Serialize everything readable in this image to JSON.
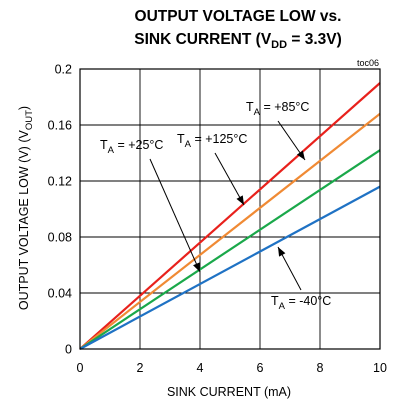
{
  "chart_data": {
    "type": "line",
    "title_line1": "OUTPUT VOLTAGE LOW vs.",
    "title_line2_prefix": "SINK CURRENT (V",
    "title_line2_sub": "DD",
    "title_line2_suffix": " = 3.3V)",
    "reference": "toc06",
    "xlabel": "SINK CURRENT (mA)",
    "ylabel_prefix": "OUTPUT VOLTAGE LOW (V) (V",
    "ylabel_sub": "OUT",
    "ylabel_suffix": ")",
    "xlim": [
      0,
      10
    ],
    "ylim": [
      0,
      0.2
    ],
    "xticks": [
      0,
      2,
      4,
      6,
      8,
      10
    ],
    "xtick_labels": [
      "0",
      "2",
      "4",
      "6",
      "8",
      "10"
    ],
    "yticks": [
      0,
      0.04,
      0.08,
      0.12,
      0.16,
      0.2
    ],
    "ytick_labels": [
      "0",
      "0.04",
      "0.08",
      "0.12",
      "0.16",
      "0.2"
    ],
    "grid": true,
    "series": [
      {
        "label": "+125°C",
        "color": "#e8211c",
        "x": [
          0,
          10
        ],
        "y": [
          0,
          0.19
        ]
      },
      {
        "label": "+85°C",
        "color": "#f08a34",
        "x": [
          0,
          10
        ],
        "y": [
          0,
          0.168
        ]
      },
      {
        "label": "+25°C",
        "color": "#1aa84a",
        "x": [
          0,
          10
        ],
        "y": [
          0,
          0.142
        ]
      },
      {
        "label": "-40°C",
        "color": "#1f72c4",
        "x": [
          0,
          10
        ],
        "y": [
          0,
          0.116
        ]
      }
    ],
    "annotations": [
      {
        "prefix": "T",
        "sub": "A",
        "text": " = +85°C",
        "series": 1
      },
      {
        "prefix": "T",
        "sub": "A",
        "text": " = +125°C",
        "series": 0
      },
      {
        "prefix": "T",
        "sub": "A",
        "text": " = +25°C",
        "series": 2
      },
      {
        "prefix": "T",
        "sub": "A",
        "text": " = -40°C",
        "series": 3
      }
    ]
  }
}
